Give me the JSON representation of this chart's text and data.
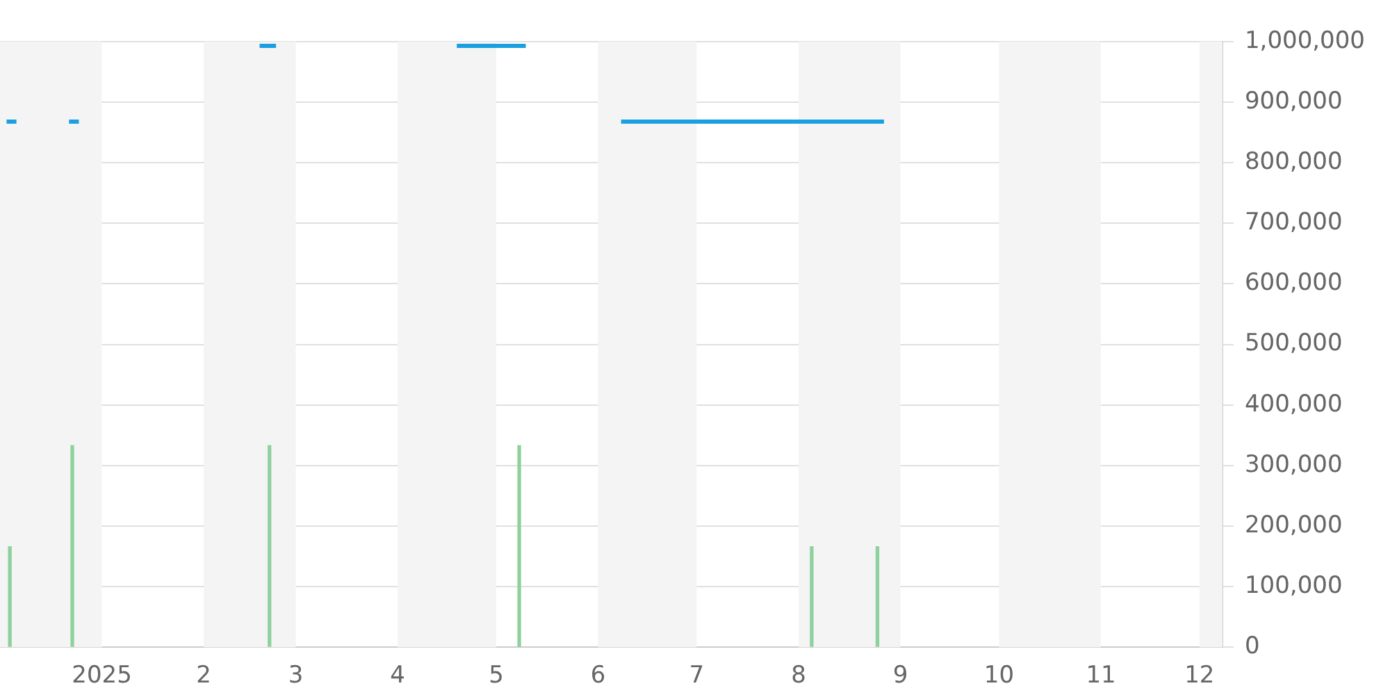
{
  "chart_data": {
    "type": "line",
    "xlim": [
      "2024-12-01",
      "2025-12-08"
    ],
    "ylim": [
      0,
      1000000
    ],
    "xticks": [
      {
        "value": "2025-01-01",
        "label": "2025"
      },
      {
        "value": "2025-02-01",
        "label": "2"
      },
      {
        "value": "2025-03-01",
        "label": "3"
      },
      {
        "value": "2025-04-01",
        "label": "4"
      },
      {
        "value": "2025-05-01",
        "label": "5"
      },
      {
        "value": "2025-06-01",
        "label": "6"
      },
      {
        "value": "2025-07-01",
        "label": "7"
      },
      {
        "value": "2025-08-01",
        "label": "8"
      },
      {
        "value": "2025-09-01",
        "label": "9"
      },
      {
        "value": "2025-10-01",
        "label": "10"
      },
      {
        "value": "2025-11-01",
        "label": "11"
      },
      {
        "value": "2025-12-01",
        "label": "12"
      }
    ],
    "yticks": [
      {
        "value": 0,
        "label": "0"
      },
      {
        "value": 100000,
        "label": "100,000"
      },
      {
        "value": 200000,
        "label": "200,000"
      },
      {
        "value": 300000,
        "label": "300,000"
      },
      {
        "value": 400000,
        "label": "400,000"
      },
      {
        "value": 500000,
        "label": "500,000"
      },
      {
        "value": 600000,
        "label": "600,000"
      },
      {
        "value": 700000,
        "label": "700,000"
      },
      {
        "value": 800000,
        "label": "800,000"
      },
      {
        "value": 900000,
        "label": "900,000"
      },
      {
        "value": 1000000,
        "label": "1,000,000"
      }
    ],
    "grid": "y",
    "legend": false,
    "marker": "none",
    "line_style": "solid",
    "series": [
      {
        "color": "#1a9fe0",
        "x": [
          "2024-12-03",
          "2024-12-06",
          "2024-12-14",
          "2024-12-22",
          "2024-12-25",
          "2025-01-20",
          "2025-02-18",
          "2025-02-23",
          "2025-03-20",
          "2025-04-19",
          "2025-05-10",
          "2025-05-25",
          "2025-06-08",
          "2025-08-27"
        ],
        "values": [
          868000,
          868000,
          null,
          868000,
          868000,
          null,
          993000,
          993000,
          null,
          993000,
          993000,
          null,
          868000,
          868000
        ]
      },
      {
        "type": "bar",
        "color": "#8fd19e",
        "x": [
          "2024-12-04",
          "2024-12-23",
          "2025-02-21",
          "2025-05-08",
          "2025-08-05",
          "2025-08-25"
        ],
        "values": [
          166000,
          333000,
          333000,
          333000,
          166000,
          166000
        ]
      }
    ],
    "bands": [
      {
        "axis": "x",
        "from": "2024-12-01",
        "to": "2025-01-01",
        "color": "#f4f4f4"
      },
      {
        "axis": "x",
        "from": "2025-02-01",
        "to": "2025-03-01",
        "color": "#f4f4f4"
      },
      {
        "axis": "x",
        "from": "2025-04-01",
        "to": "2025-05-01",
        "color": "#f4f4f4"
      },
      {
        "axis": "x",
        "from": "2025-06-01",
        "to": "2025-07-01",
        "color": "#f4f4f4"
      },
      {
        "axis": "x",
        "from": "2025-08-01",
        "to": "2025-09-01",
        "color": "#f4f4f4"
      },
      {
        "axis": "x",
        "from": "2025-10-01",
        "to": "2025-11-01",
        "color": "#f4f4f4"
      },
      {
        "axis": "x",
        "from": "2025-12-01",
        "to": "2025-12-08",
        "color": "#f4f4f4"
      }
    ]
  }
}
